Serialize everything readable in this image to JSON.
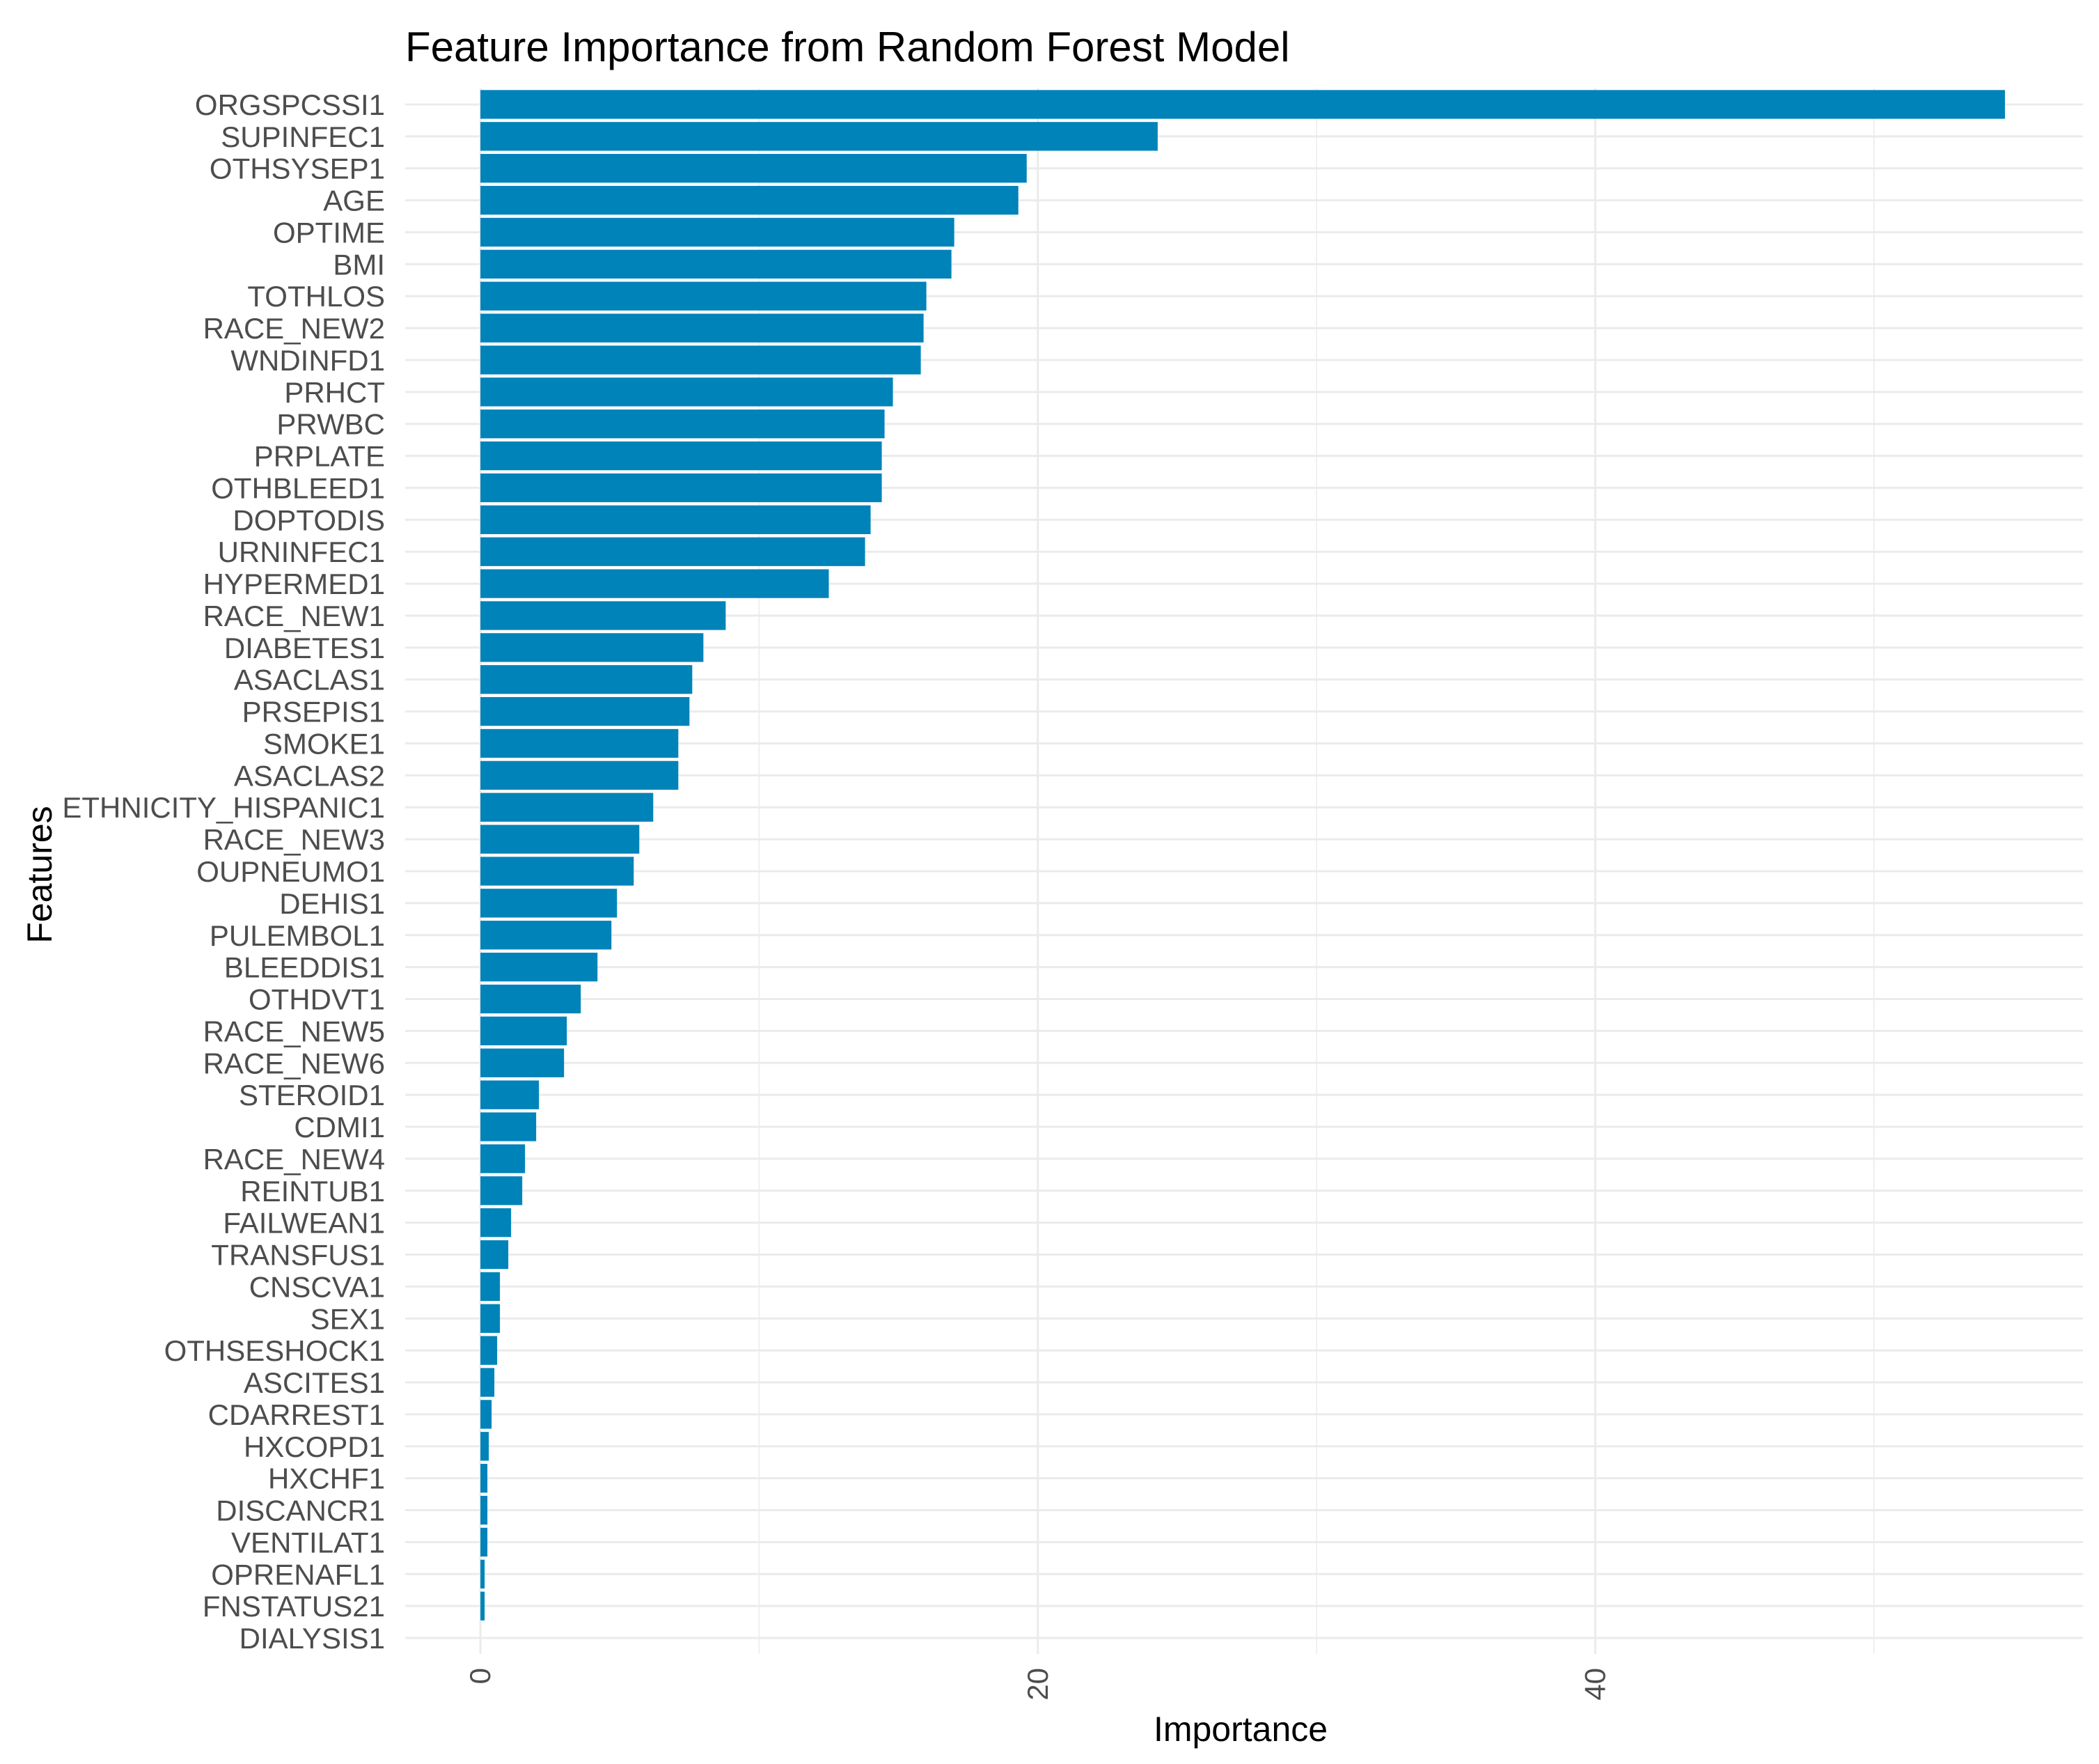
{
  "chart_data": {
    "type": "bar",
    "orientation": "horizontal",
    "title": "Feature Importance from Random Forest Model",
    "xlabel": "Importance",
    "ylabel": "Features",
    "xlim": [
      -2.7,
      57.5
    ],
    "x_ticks": [
      0,
      20,
      40
    ],
    "x_tick_labels": [
      "0",
      "20",
      "40"
    ],
    "x_tick_rotation": "vertical",
    "grid": true,
    "bar_color": "#0083B9",
    "grid_color": "#EBEBEB",
    "categories": [
      "ORGSPCSSI1",
      "SUPINFEC1",
      "OTHSYSEP1",
      "AGE",
      "OPTIME",
      "BMI",
      "TOTHLOS",
      "RACE_NEW2",
      "WNDINFD1",
      "PRHCT",
      "PRWBC",
      "PRPLATE",
      "OTHBLEED1",
      "DOPTODIS",
      "URNINFEC1",
      "HYPERMED1",
      "RACE_NEW1",
      "DIABETES1",
      "ASACLAS1",
      "PRSEPIS1",
      "SMOKE1",
      "ASACLAS2",
      "ETHNICITY_HISPANIC1",
      "RACE_NEW3",
      "OUPNEUMO1",
      "DEHIS1",
      "PULEMBOL1",
      "BLEEDDIS1",
      "OTHDVT1",
      "RACE_NEW5",
      "RACE_NEW6",
      "STEROID1",
      "CDMI1",
      "RACE_NEW4",
      "REINTUB1",
      "FAILWEAN1",
      "TRANSFUS1",
      "CNSCVA1",
      "SEX1",
      "OTHSESHOCK1",
      "ASCITES1",
      "CDARREST1",
      "HXCOPD1",
      "HXCHF1",
      "DISCANCR1",
      "VENTILAT1",
      "OPRENAFL1",
      "FNSTATUS21",
      "DIALYSIS1"
    ],
    "values": [
      54.7,
      24.3,
      19.6,
      19.3,
      17.0,
      16.9,
      16.0,
      15.9,
      15.8,
      14.8,
      14.5,
      14.4,
      14.4,
      14.0,
      13.8,
      12.5,
      8.8,
      8.0,
      7.6,
      7.5,
      7.1,
      7.1,
      6.2,
      5.7,
      5.5,
      4.9,
      4.7,
      4.2,
      3.6,
      3.1,
      3.0,
      2.1,
      2.0,
      1.6,
      1.5,
      1.1,
      1.0,
      0.7,
      0.7,
      0.6,
      0.5,
      0.4,
      0.3,
      0.25,
      0.25,
      0.25,
      0.15,
      0.15,
      0.0
    ]
  }
}
